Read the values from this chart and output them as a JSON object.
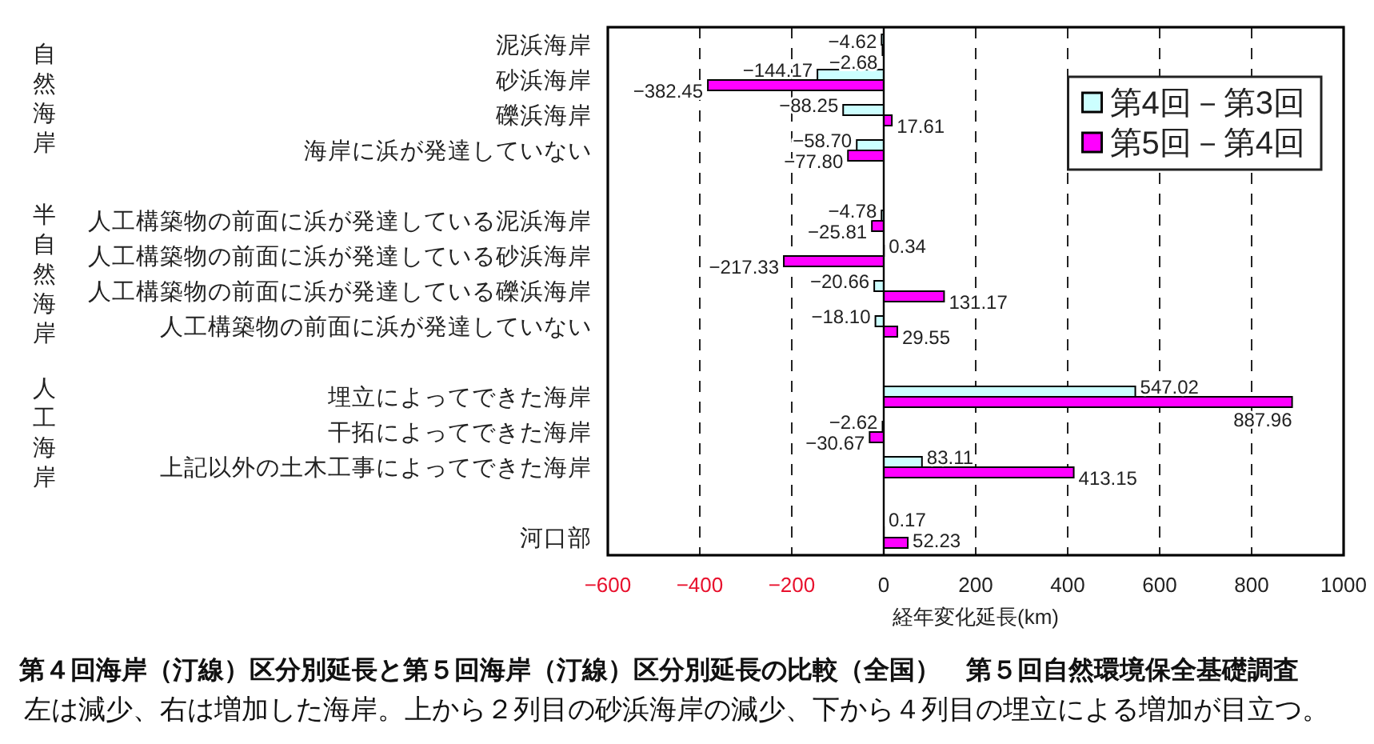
{
  "chart_data": {
    "type": "bar",
    "orientation": "horizontal",
    "title": "第４回海岸（汀線）区分別延長と第５回海岸（汀線）区分別延長の比較（全国）　第５回自然環境保全基礎調査",
    "subtitle": "左は減少、右は増加した海岸。上から２列目の砂浜海岸の減少、下から４列目の埋立による増加が目立つ。",
    "xlabel": "経年変化延長(km)",
    "annotations": [
      "自然海岸",
      "半自然海岸",
      "人工海岸"
    ],
    "categories": [
      "泥浜海岸",
      "砂浜海岸",
      "礫浜海岸",
      "海岸に浜が発達していない",
      null,
      "人工構築物の前面に浜が発達している泥浜海岸",
      "人工構築物の前面に浜が発達している砂浜海岸",
      "人工構築物の前面に浜が発達している礫浜海岸",
      "人工構築物の前面に浜が発達していない",
      null,
      "埋立によってできた海岸",
      "干拓によってできた海岸",
      "上記以外の土木工事によってできた海岸",
      null,
      "河口部"
    ],
    "series": [
      {
        "name": "第4回－第3回",
        "color": "#ccffff",
        "values": [
          -4.62,
          -144.17,
          -88.25,
          -58.7,
          null,
          -4.78,
          0.34,
          -20.66,
          -18.1,
          null,
          547.02,
          -2.62,
          83.11,
          null,
          0.17
        ],
        "value_labels": [
          "−4.62",
          "−144.17",
          "−88.25",
          "−58.70",
          null,
          "−4.78",
          "0.34",
          "−20.66",
          "−18.10",
          null,
          "547.02",
          "−2.62",
          "83.11",
          null,
          "0.17"
        ]
      },
      {
        "name": "第5回－第4回",
        "color": "#ff00ff",
        "values": [
          -2.68,
          -382.45,
          17.61,
          -77.8,
          null,
          -25.81,
          -217.33,
          131.17,
          29.55,
          null,
          887.96,
          -30.67,
          413.15,
          null,
          52.23
        ],
        "value_labels": [
          "−2.68",
          "−382.45",
          "17.61",
          "−77.80",
          null,
          "−25.81",
          "−217.33",
          "131.17",
          "29.55",
          null,
          "887.96",
          "−30.67",
          "413.15",
          null,
          "52.23"
        ]
      }
    ],
    "xlim": [
      -600,
      1000
    ],
    "xticks": [
      {
        "value": -600,
        "label": "−600"
      },
      {
        "value": -400,
        "label": "−400"
      },
      {
        "value": -200,
        "label": "−200"
      },
      0,
      200,
      400,
      600,
      800,
      1000
    ],
    "grid": "x",
    "legend": "top right"
  }
}
